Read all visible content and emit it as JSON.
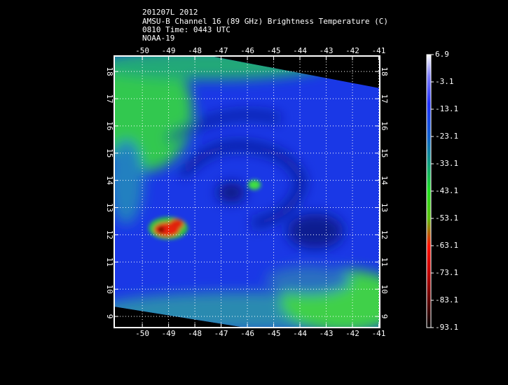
{
  "header": {
    "lines": [
      "201207L 2012",
      "AMSU-B Channel 16 (89 GHz) Brightness Temperature (C)",
      "0810 Time: 0443 UTC",
      "NOAA-19"
    ]
  },
  "map": {
    "lonlim": [
      -51.07,
      -40.96
    ],
    "latlim": [
      8.59,
      18.57
    ],
    "lon_ticks": [
      -50,
      -49,
      -48,
      -47,
      -46,
      -45,
      -44,
      -43,
      -42,
      -41
    ],
    "lat_ticks": [
      9,
      10,
      11,
      12,
      13,
      14,
      15,
      16,
      17,
      18
    ]
  },
  "colorbar": {
    "range": [
      -93.1,
      6.9
    ],
    "ticks": [
      6.9,
      -3.1,
      -13.1,
      -23.1,
      -33.1,
      -43.1,
      -53.1,
      -63.1,
      -73.1,
      -83.1,
      -93.1
    ]
  }
}
